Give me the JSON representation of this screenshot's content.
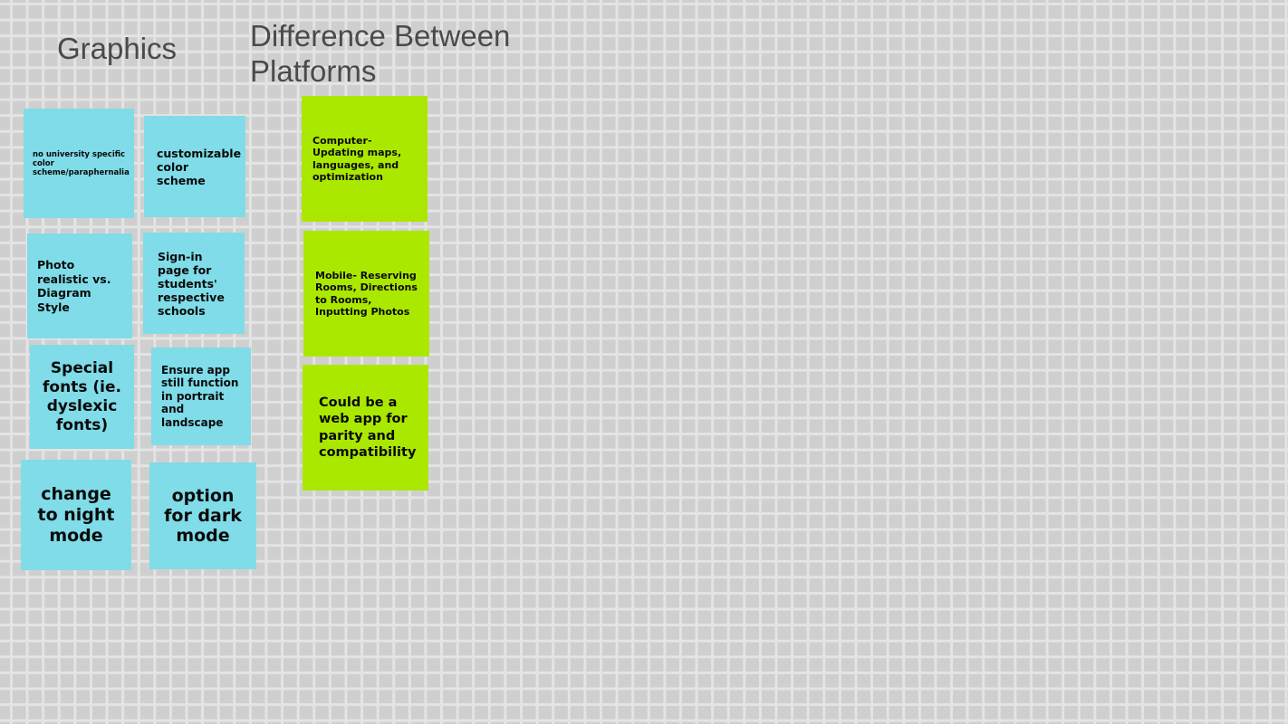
{
  "headings": {
    "graphics": "Graphics",
    "platforms": "Difference Between Platforms"
  },
  "graphics_notes": {
    "university_scheme": "no university specific color scheme/paraphernalia",
    "customizable_color": "customizable color scheme",
    "photo_realistic": "Photo realistic vs. Diagram Style",
    "sign_in_page": "Sign-in page for students' respective schools",
    "special_fonts": "Special fonts (ie. dyslexic fonts)",
    "portrait_landscape": "Ensure app still function in portrait and landscape",
    "night_mode": "change to night mode",
    "dark_mode": "option for dark mode"
  },
  "platform_notes": {
    "computer": "Computer-Updating maps, languages, and optimization",
    "mobile": "Mobile- Reserving Rooms, Directions to Rooms, Inputting Photos",
    "web_app": "Could be a web app for parity and compatibility"
  },
  "colors": {
    "graphics_note": "#7fdce8",
    "platform_note": "#abe800",
    "canvas": "#cfcfcf",
    "grid_line": "#e4e4e4",
    "heading_text": "#4a4a4a"
  }
}
